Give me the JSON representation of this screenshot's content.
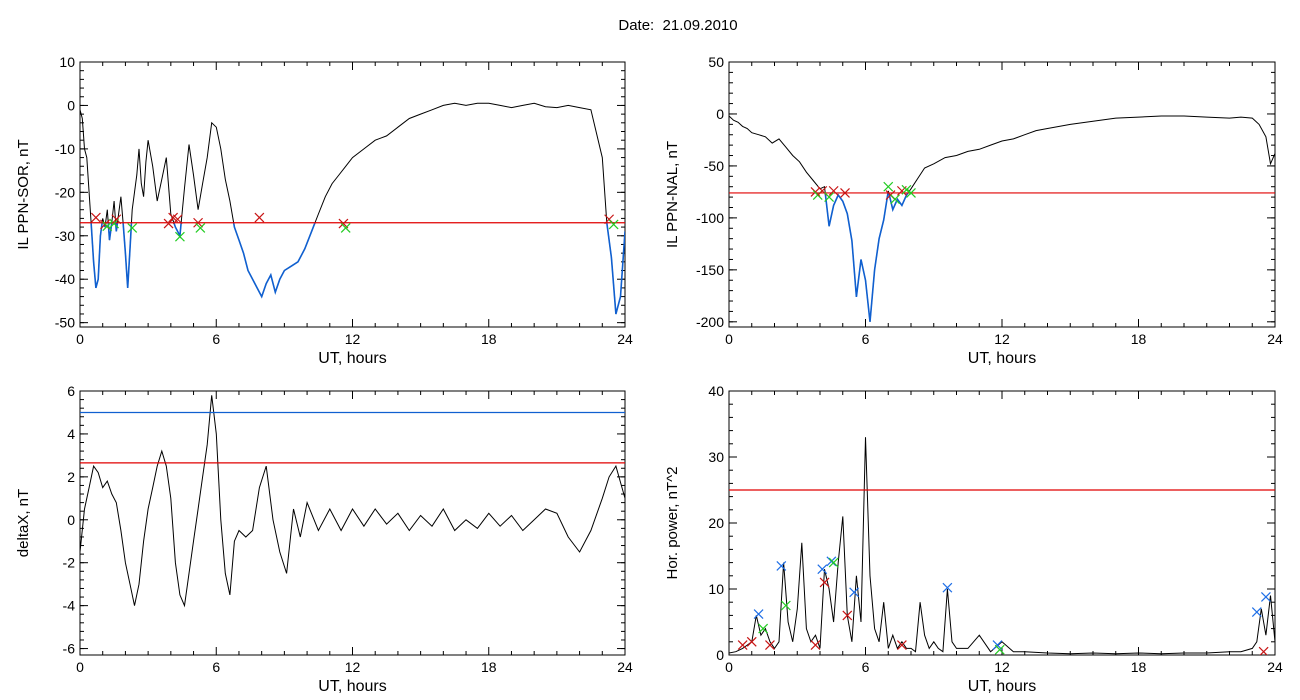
{
  "title": "Date:  21.09.2010",
  "colors": {
    "trace": "#000000",
    "threshold_red": "#e00000",
    "threshold_blue": "#1060d0",
    "marker_red": "#c81414",
    "marker_green": "#22cc22",
    "marker_blue": "#1e6ee6"
  },
  "chart_data": [
    {
      "id": "sor",
      "type": "line",
      "xlabel": "UT, hours",
      "ylabel": "IL PPN-SOR, nT",
      "xlim": [
        0,
        24
      ],
      "ylim": [
        -51,
        10
      ],
      "xticks": [
        0,
        6,
        12,
        18,
        24
      ],
      "yticks": [
        10,
        0,
        -10,
        -20,
        -30,
        -40,
        -50
      ],
      "grid": false,
      "thresholds": [
        {
          "value": -27,
          "color": "red"
        }
      ],
      "highlight_below": -27,
      "series": [
        {
          "x": [
            0,
            0.1,
            0.2,
            0.3,
            0.4,
            0.5,
            0.6,
            0.7,
            0.8,
            0.9,
            1.0,
            1.1,
            1.2,
            1.3,
            1.4,
            1.5,
            1.6,
            1.7,
            1.8,
            1.9,
            2.0,
            2.1,
            2.2,
            2.3,
            2.4,
            2.5,
            2.6,
            2.7,
            2.8,
            2.9,
            3.0,
            3.2,
            3.4,
            3.6,
            3.8,
            4.0,
            4.2,
            4.4,
            4.6,
            4.8,
            5.0,
            5.2,
            5.4,
            5.6,
            5.8,
            6.0,
            6.2,
            6.4,
            6.6,
            6.8,
            7.0,
            7.2,
            7.4,
            7.6,
            7.8,
            8.0,
            8.2,
            8.4,
            8.6,
            8.8,
            9.0,
            9.3,
            9.6,
            9.9,
            10.2,
            10.5,
            10.8,
            11.1,
            11.4,
            11.7,
            12.0,
            12.5,
            13.0,
            13.5,
            14.0,
            14.5,
            15.0,
            15.5,
            16.0,
            16.5,
            17.0,
            17.5,
            18.0,
            18.5,
            19.0,
            19.5,
            20.0,
            20.5,
            21.0,
            21.5,
            22.0,
            22.5,
            23.0,
            23.2,
            23.4,
            23.6,
            23.8,
            24.0
          ],
          "y": [
            -1,
            -3,
            -10,
            -12,
            -20,
            -28,
            -36,
            -42,
            -40,
            -30,
            -26,
            -28,
            -24,
            -31,
            -27,
            -22,
            -29,
            -25,
            -21,
            -27,
            -34,
            -42,
            -33,
            -24,
            -20,
            -16,
            -10,
            -18,
            -21,
            -13,
            -8,
            -14,
            -22,
            -17,
            -12,
            -25,
            -28,
            -30,
            -19,
            -9,
            -16,
            -24,
            -18,
            -12,
            -4,
            -5,
            -10,
            -17,
            -22,
            -28,
            -31,
            -34,
            -38,
            -40,
            -42,
            -44,
            -41,
            -39,
            -43,
            -40,
            -38,
            -37,
            -36,
            -33,
            -29,
            -25,
            -21,
            -18,
            -16,
            -14,
            -12,
            -10,
            -8,
            -7,
            -5,
            -3,
            -2,
            -1,
            0,
            0.5,
            0,
            0.5,
            0.5,
            0,
            -0.5,
            0,
            0.5,
            -0.3,
            -0.5,
            0,
            -0.5,
            -1,
            -12,
            -27,
            -35,
            -48,
            -44,
            -29
          ]
        }
      ],
      "markers": [
        {
          "x": 0.7,
          "y": -25.8,
          "color": "red"
        },
        {
          "x": 1.1,
          "y": -27.4,
          "color": "red"
        },
        {
          "x": 1.2,
          "y": -27.8,
          "color": "green"
        },
        {
          "x": 1.5,
          "y": -27.2,
          "color": "green"
        },
        {
          "x": 1.6,
          "y": -26.2,
          "color": "red"
        },
        {
          "x": 2.3,
          "y": -28.2,
          "color": "green"
        },
        {
          "x": 3.9,
          "y": -27.2,
          "color": "red"
        },
        {
          "x": 4.1,
          "y": -25.8,
          "color": "red"
        },
        {
          "x": 4.4,
          "y": -30.2,
          "color": "green"
        },
        {
          "x": 4.3,
          "y": -26.2,
          "color": "red"
        },
        {
          "x": 5.2,
          "y": -27.0,
          "color": "red"
        },
        {
          "x": 5.3,
          "y": -28.2,
          "color": "green"
        },
        {
          "x": 7.9,
          "y": -25.8,
          "color": "red"
        },
        {
          "x": 11.6,
          "y": -27.2,
          "color": "red"
        },
        {
          "x": 11.7,
          "y": -28.2,
          "color": "green"
        },
        {
          "x": 23.3,
          "y": -26.2,
          "color": "red"
        },
        {
          "x": 23.5,
          "y": -27.4,
          "color": "green"
        }
      ]
    },
    {
      "id": "nal",
      "type": "line",
      "xlabel": "UT, hours",
      "ylabel": "IL PPN-NAL, nT",
      "xlim": [
        0,
        24
      ],
      "ylim": [
        -205,
        50
      ],
      "xticks": [
        0,
        6,
        12,
        18,
        24
      ],
      "yticks": [
        50,
        0,
        -50,
        -100,
        -150,
        -200
      ],
      "grid": false,
      "thresholds": [
        {
          "value": -76,
          "color": "red"
        }
      ],
      "highlight_below": -76,
      "series": [
        {
          "x": [
            0,
            0.2,
            0.4,
            0.6,
            0.8,
            1.0,
            1.3,
            1.6,
            1.9,
            2.2,
            2.5,
            2.8,
            3.1,
            3.4,
            3.7,
            4.0,
            4.2,
            4.4,
            4.6,
            4.8,
            5.0,
            5.2,
            5.4,
            5.6,
            5.8,
            6.0,
            6.2,
            6.4,
            6.6,
            6.8,
            7.0,
            7.2,
            7.4,
            7.6,
            7.8,
            8.0,
            8.3,
            8.6,
            9.0,
            9.5,
            10.0,
            10.5,
            11.0,
            11.5,
            12.0,
            12.5,
            13.0,
            13.5,
            14.0,
            15.0,
            16.0,
            17.0,
            18.0,
            19.0,
            20.0,
            21.0,
            22.0,
            22.5,
            23.0,
            23.3,
            23.6,
            23.8,
            24.0
          ],
          "y": [
            -2,
            -6,
            -8,
            -12,
            -14,
            -18,
            -20,
            -22,
            -28,
            -24,
            -32,
            -40,
            -46,
            -56,
            -64,
            -72,
            -70,
            -108,
            -88,
            -78,
            -84,
            -96,
            -122,
            -176,
            -140,
            -160,
            -200,
            -150,
            -120,
            -102,
            -74,
            -92,
            -82,
            -88,
            -78,
            -72,
            -62,
            -52,
            -48,
            -42,
            -40,
            -36,
            -34,
            -30,
            -26,
            -24,
            -20,
            -16,
            -14,
            -10,
            -7,
            -4,
            -3,
            -2,
            -2,
            -3,
            -4,
            -3,
            -4,
            -10,
            -22,
            -48,
            -38
          ]
        }
      ],
      "markers": [
        {
          "x": 3.8,
          "y": -75,
          "color": "red"
        },
        {
          "x": 3.9,
          "y": -78,
          "color": "green"
        },
        {
          "x": 4.1,
          "y": -74,
          "color": "red"
        },
        {
          "x": 4.4,
          "y": -80,
          "color": "green"
        },
        {
          "x": 4.6,
          "y": -74,
          "color": "red"
        },
        {
          "x": 5.1,
          "y": -76,
          "color": "red"
        },
        {
          "x": 7.0,
          "y": -70,
          "color": "green"
        },
        {
          "x": 7.1,
          "y": -78,
          "color": "red"
        },
        {
          "x": 7.3,
          "y": -82,
          "color": "green"
        },
        {
          "x": 7.6,
          "y": -74,
          "color": "red"
        },
        {
          "x": 7.8,
          "y": -73,
          "color": "green"
        },
        {
          "x": 8.0,
          "y": -76,
          "color": "green"
        }
      ]
    },
    {
      "id": "deltax",
      "type": "line",
      "xlabel": "UT, hours",
      "ylabel": "deltaX, nT",
      "xlim": [
        0,
        24
      ],
      "ylim": [
        -6.3,
        6
      ],
      "xticks": [
        0,
        6,
        12,
        18,
        24
      ],
      "yticks": [
        6,
        4,
        2,
        0,
        -2,
        -4,
        -6
      ],
      "grid": false,
      "thresholds": [
        {
          "value": 5.0,
          "color": "blue"
        },
        {
          "value": 2.65,
          "color": "red"
        }
      ],
      "series": [
        {
          "x": [
            0,
            0.2,
            0.4,
            0.6,
            0.8,
            1.0,
            1.2,
            1.4,
            1.6,
            1.8,
            2.0,
            2.2,
            2.4,
            2.6,
            2.8,
            3.0,
            3.2,
            3.4,
            3.6,
            3.8,
            4.0,
            4.2,
            4.4,
            4.6,
            4.8,
            5.0,
            5.2,
            5.4,
            5.6,
            5.8,
            6.0,
            6.2,
            6.4,
            6.6,
            6.8,
            7.0,
            7.3,
            7.6,
            7.9,
            8.2,
            8.5,
            8.8,
            9.1,
            9.4,
            9.7,
            10.0,
            10.5,
            11.0,
            11.5,
            12.0,
            12.5,
            13.0,
            13.5,
            14.0,
            14.5,
            15.0,
            15.5,
            16.0,
            16.5,
            17.0,
            17.5,
            18.0,
            18.5,
            19.0,
            19.5,
            20.0,
            20.5,
            21.0,
            21.5,
            22.0,
            22.5,
            23.0,
            23.3,
            23.6,
            24.0
          ],
          "y": [
            -1.5,
            0.5,
            1.5,
            2.5,
            2.2,
            1.5,
            1.8,
            1.2,
            0.8,
            -0.5,
            -2,
            -3,
            -4,
            -3,
            -1,
            0.5,
            1.5,
            2.5,
            3.2,
            2.5,
            1,
            -2,
            -3.5,
            -4,
            -2.5,
            -1,
            0.5,
            2,
            3.5,
            5.8,
            4,
            0,
            -2.5,
            -3.5,
            -1,
            -0.5,
            -0.8,
            -0.5,
            1.5,
            2.5,
            0,
            -1.5,
            -2.5,
            0.5,
            -0.8,
            0.8,
            -0.5,
            0.5,
            -0.5,
            0.5,
            -0.3,
            0.5,
            -0.2,
            0.3,
            -0.5,
            0.2,
            -0.3,
            0.5,
            -0.5,
            0,
            -0.4,
            0.3,
            -0.3,
            0.2,
            -0.5,
            0,
            0.5,
            0.3,
            -0.8,
            -1.5,
            -0.5,
            1,
            2,
            2.5,
            1
          ]
        }
      ],
      "markers": []
    },
    {
      "id": "power",
      "type": "line",
      "xlabel": "UT, hours",
      "ylabel": "Hor. power, nT^2",
      "xlim": [
        0,
        24
      ],
      "ylim": [
        0,
        40
      ],
      "xticks": [
        0,
        6,
        12,
        18,
        24
      ],
      "yticks": [
        40,
        30,
        20,
        10,
        0
      ],
      "grid": false,
      "thresholds": [
        {
          "value": 25,
          "color": "red"
        }
      ],
      "series": [
        {
          "x": [
            0,
            0.3,
            0.6,
            0.8,
            1.0,
            1.2,
            1.4,
            1.6,
            1.8,
            2.0,
            2.2,
            2.4,
            2.6,
            2.8,
            3.0,
            3.2,
            3.4,
            3.6,
            3.8,
            4.0,
            4.2,
            4.4,
            4.6,
            4.8,
            5.0,
            5.2,
            5.4,
            5.6,
            5.8,
            6.0,
            6.2,
            6.4,
            6.6,
            6.8,
            7.0,
            7.2,
            7.4,
            7.6,
            7.8,
            8.0,
            8.2,
            8.4,
            8.6,
            8.8,
            9.0,
            9.2,
            9.4,
            9.6,
            9.8,
            10.0,
            10.5,
            11.0,
            11.5,
            12.0,
            12.5,
            13.0,
            14.0,
            15.0,
            16.0,
            17.0,
            18.0,
            19.0,
            20.0,
            21.0,
            22.0,
            22.5,
            23.0,
            23.2,
            23.4,
            23.6,
            23.8,
            24.0
          ],
          "y": [
            0.3,
            0.5,
            1,
            1.5,
            2,
            6,
            3,
            4,
            2,
            1,
            2,
            14,
            5,
            2,
            7,
            17,
            4,
            2,
            3,
            1,
            13,
            10,
            5,
            14,
            21,
            6,
            2,
            12,
            5,
            33,
            12,
            4,
            2,
            8,
            1,
            3,
            1,
            2,
            1,
            1,
            0.5,
            8,
            3,
            1,
            2,
            1,
            0.5,
            10,
            2,
            1,
            1,
            3,
            0.5,
            2,
            0.5,
            0.5,
            0.3,
            0.2,
            0.3,
            0.2,
            0.3,
            0.2,
            0.3,
            0.3,
            0.5,
            0.5,
            1,
            2,
            7,
            3,
            9,
            2
          ]
        }
      ],
      "markers": [
        {
          "x": 0.6,
          "y": 1.5,
          "color": "red"
        },
        {
          "x": 1.0,
          "y": 2.0,
          "color": "red"
        },
        {
          "x": 1.3,
          "y": 6.2,
          "color": "blue"
        },
        {
          "x": 1.5,
          "y": 4.0,
          "color": "green"
        },
        {
          "x": 1.8,
          "y": 1.5,
          "color": "red"
        },
        {
          "x": 2.3,
          "y": 13.5,
          "color": "blue"
        },
        {
          "x": 2.5,
          "y": 7.5,
          "color": "green"
        },
        {
          "x": 3.8,
          "y": 1.5,
          "color": "red"
        },
        {
          "x": 4.1,
          "y": 13.0,
          "color": "blue"
        },
        {
          "x": 4.2,
          "y": 11.0,
          "color": "red"
        },
        {
          "x": 4.5,
          "y": 14.2,
          "color": "blue"
        },
        {
          "x": 4.6,
          "y": 14.0,
          "color": "green"
        },
        {
          "x": 5.2,
          "y": 6.0,
          "color": "red"
        },
        {
          "x": 5.5,
          "y": 9.5,
          "color": "blue"
        },
        {
          "x": 7.6,
          "y": 1.5,
          "color": "red"
        },
        {
          "x": 9.6,
          "y": 10.2,
          "color": "blue"
        },
        {
          "x": 11.8,
          "y": 1.5,
          "color": "blue"
        },
        {
          "x": 11.9,
          "y": 0.8,
          "color": "green"
        },
        {
          "x": 23.2,
          "y": 6.5,
          "color": "blue"
        },
        {
          "x": 23.6,
          "y": 8.8,
          "color": "blue"
        },
        {
          "x": 23.5,
          "y": 0.5,
          "color": "red"
        }
      ]
    }
  ]
}
